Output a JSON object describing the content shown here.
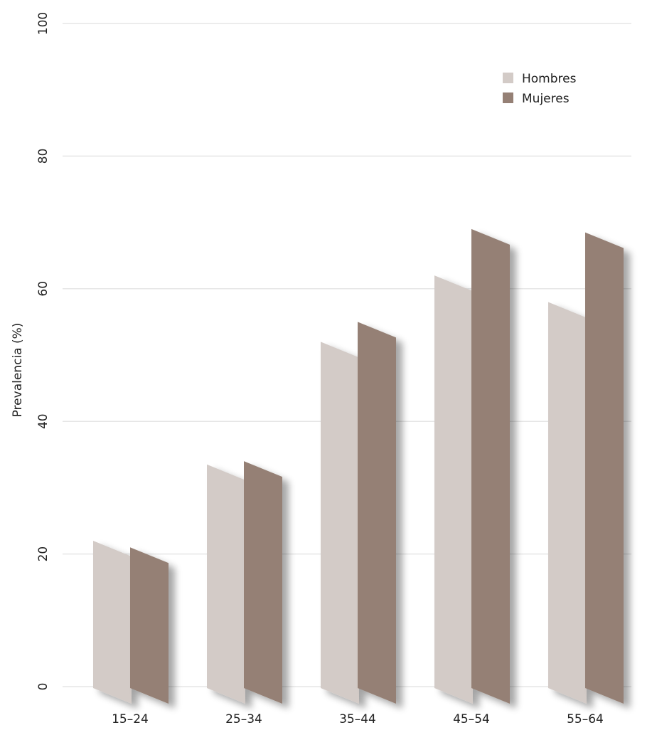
{
  "chart_data": {
    "type": "bar",
    "title": "",
    "xlabel": "",
    "ylabel": "Prevalencia (%)",
    "ylim": [
      0,
      100
    ],
    "yticks": [
      0,
      20,
      40,
      60,
      80,
      100
    ],
    "grid": true,
    "legend_position": "top-right",
    "categories": [
      "15-24",
      "25-34",
      "35-44",
      "45-54",
      "55-64"
    ],
    "series": [
      {
        "name": "Hombres",
        "color": "#d3cbc7",
        "values": [
          22.0,
          33.5,
          52.0,
          62.0,
          58.0
        ]
      },
      {
        "name": "Mujeres",
        "color": "#958075",
        "values": [
          21.0,
          34.0,
          55.0,
          69.0,
          68.5
        ]
      }
    ]
  }
}
